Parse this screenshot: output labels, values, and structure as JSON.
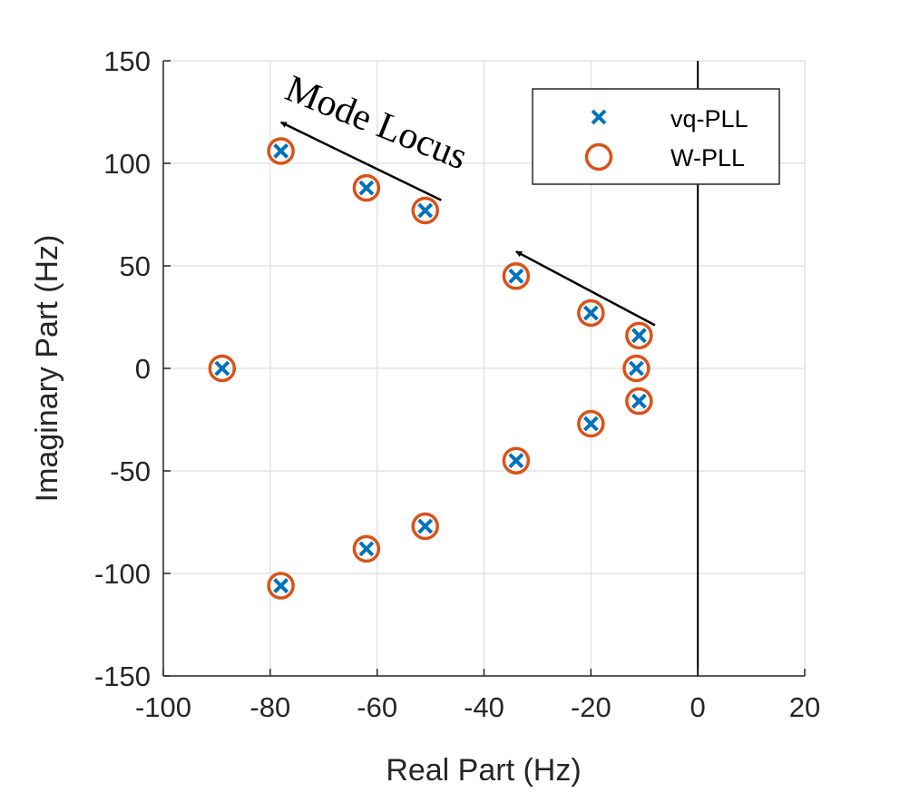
{
  "chart_data": {
    "type": "scatter",
    "xlabel": "Real Part (Hz)",
    "ylabel": "Imaginary Part (Hz)",
    "xlim": [
      -100,
      20
    ],
    "ylim": [
      -150,
      150
    ],
    "xticks": [
      -100,
      -80,
      -60,
      -40,
      -20,
      0,
      20
    ],
    "yticks": [
      -150,
      -100,
      -50,
      0,
      50,
      100,
      150
    ],
    "grid": true,
    "legend_position": "top-right",
    "zero_line": "x = 0",
    "series": [
      {
        "name": "vq-PLL",
        "marker": "x",
        "color": "#0072BD",
        "x": [
          -89,
          -78,
          -78,
          -62,
          -62,
          -51,
          -51,
          -34,
          -34,
          -20,
          -20,
          -11.5,
          -11,
          -11
        ],
        "y": [
          0,
          106,
          -106,
          88,
          -88,
          77,
          -77,
          45,
          -45,
          27,
          -27,
          0,
          16,
          -16
        ]
      },
      {
        "name": "W-PLL",
        "marker": "o",
        "color": "#D95319",
        "x": [
          -89,
          -78,
          -78,
          -62,
          -62,
          -51,
          -51,
          -34,
          -34,
          -20,
          -20,
          -11.5,
          -11,
          -11
        ],
        "y": [
          0,
          106,
          -106,
          88,
          -88,
          77,
          -77,
          45,
          -45,
          27,
          -27,
          0,
          16,
          -16
        ]
      }
    ],
    "annotations": [
      {
        "text": "Mode Locus",
        "arrow_from": [
          -48,
          82
        ],
        "arrow_to": [
          -78,
          120
        ]
      },
      {
        "text": "",
        "arrow_from": [
          -8,
          21
        ],
        "arrow_to": [
          -34,
          57
        ]
      }
    ]
  }
}
